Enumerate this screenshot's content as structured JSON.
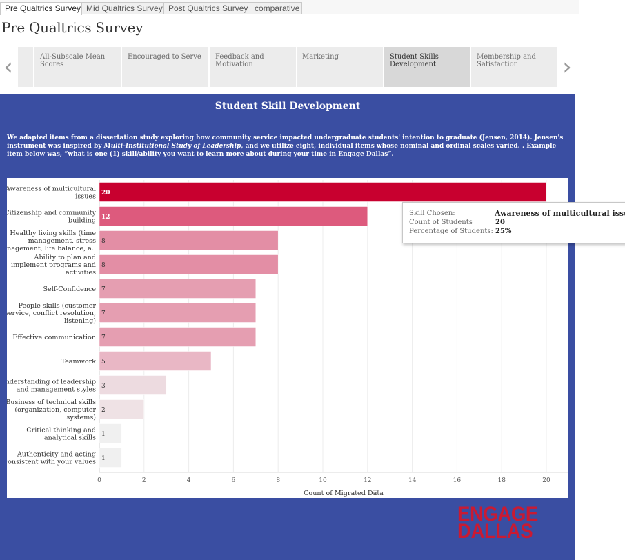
{
  "top_tabs": [
    {
      "label": "Pre Qualtrics Survey",
      "active": true
    },
    {
      "label": "Mid Qualtrics Survey",
      "active": false
    },
    {
      "label": "Post Qualtrics Survey",
      "active": false
    },
    {
      "label": "comparative",
      "active": false
    }
  ],
  "page_title": "Pre Qualtrics Survey",
  "story_points": [
    {
      "label": "All-Subscale Mean Scores",
      "active": false
    },
    {
      "label": "Encouraged to Serve",
      "active": false
    },
    {
      "label": "Feedback and Motivation",
      "active": false
    },
    {
      "label": "Marketing",
      "active": false
    },
    {
      "label": "Student Skills Development",
      "active": true
    },
    {
      "label": "Membership and Satisfaction",
      "active": false
    }
  ],
  "nav_icons": {
    "prev": "chevron-left-icon",
    "next": "chevron-right-icon"
  },
  "dashboard": {
    "title": "Student Skill Development",
    "intro_part1": "We adapted items from a dissertation study exploring how community service impacted undergraduate students' intention to graduate (Jensen, 2014). Jensen's instrument was inspired by ",
    "intro_italic": "Multi-Institutional Study of Leadership",
    "intro_part2": ", and we utilize eight, individual items whose nominal and ordinal scales varied. . Example item below was, “what is one (1) skill/ability you want to learn more about during your time in Engage Dallas”.",
    "background_color": "#3a4ea2"
  },
  "chart_data": {
    "type": "bar",
    "orientation": "horizontal",
    "categories": [
      [
        "Awareness of multicultural",
        "issues"
      ],
      [
        "Citizenship and community",
        "building"
      ],
      [
        "Healthy living skills (time",
        "management, stress",
        "management, life balance, a.."
      ],
      [
        "Ability to plan and",
        "implement programs and",
        "activities"
      ],
      [
        "Self-Confidence"
      ],
      [
        "People skills (customer",
        "service, conflict resolution,",
        "listening)"
      ],
      [
        "Effective communication"
      ],
      [
        "Teamwork"
      ],
      [
        "Understanding of leadership",
        "and management styles"
      ],
      [
        "Business of technical skills",
        "(organization, computer",
        "systems)"
      ],
      [
        "Critical thinking and",
        "analytical skills"
      ],
      [
        "Authenticity and acting",
        "consistent with your values"
      ]
    ],
    "values": [
      20,
      12,
      8,
      8,
      7,
      7,
      7,
      5,
      3,
      2,
      1,
      1
    ],
    "colors": [
      "#c8002f",
      "#dd5a7d",
      "#e38ea5",
      "#e38ea5",
      "#e59eb1",
      "#e59eb1",
      "#e59eb1",
      "#e9b7c5",
      "#eddbe0",
      "#efe2e5",
      "#f0f0f0",
      "#f0f0f0"
    ],
    "highlight_index": 0,
    "xlabel": "Count of Migrated Data",
    "xlim": [
      0,
      20
    ],
    "xticks": [
      0,
      2,
      4,
      6,
      8,
      10,
      12,
      14,
      16,
      18,
      20
    ],
    "grid": true,
    "sort_icon": "sort-descending-icon"
  },
  "tooltip": {
    "rows": [
      {
        "label": "Skill Chosen:",
        "value": "Awareness of multicultural issues"
      },
      {
        "label": "Count of Students",
        "value": "20"
      },
      {
        "label": "Percentage of Students:",
        "value": "25%"
      }
    ]
  },
  "logo": {
    "line1": "ENGAGE",
    "line2": "DALLAS",
    "color": "#c91a33"
  }
}
